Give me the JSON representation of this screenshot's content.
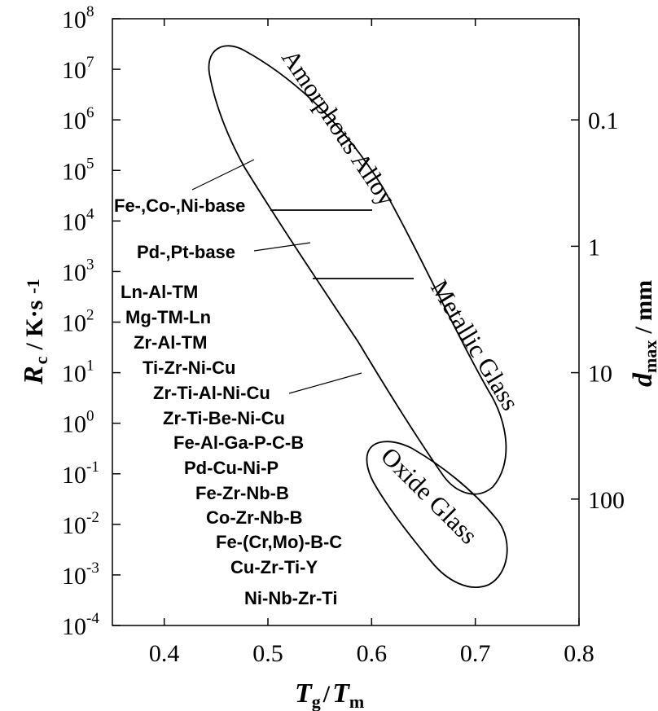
{
  "chart_data": {
    "type": "scatter",
    "x_axis": {
      "range": [
        0.35,
        0.8
      ],
      "ticks": [
        0.4,
        0.5,
        0.6,
        0.7,
        0.8
      ],
      "tick_labels": [
        "0.4",
        "0.5",
        "0.6",
        "0.7",
        "0.8"
      ],
      "label_main": "T",
      "label_sub_1": "g",
      "label_sep": "/",
      "label_main_2": "T",
      "label_sub_2": "m"
    },
    "y_axis": {
      "scale": "log",
      "range_exponent": [
        -4,
        8
      ],
      "ticks": [
        {
          "base": "10",
          "exp": "8"
        },
        {
          "base": "10",
          "exp": "7"
        },
        {
          "base": "10",
          "exp": "6"
        },
        {
          "base": "10",
          "exp": "5"
        },
        {
          "base": "10",
          "exp": "4"
        },
        {
          "base": "10",
          "exp": "3"
        },
        {
          "base": "10",
          "exp": "2"
        },
        {
          "base": "10",
          "exp": "1"
        },
        {
          "base": "10",
          "exp": "0"
        },
        {
          "base": "10",
          "exp": "-1"
        },
        {
          "base": "10",
          "exp": "-2"
        },
        {
          "base": "10",
          "exp": "-3"
        },
        {
          "base": "10",
          "exp": "-4"
        }
      ],
      "label_main": "R",
      "label_sub": "c",
      "label_unit": "/ K·s",
      "label_unit_exp": "-1"
    },
    "right_axis": {
      "label_main": "d",
      "label_sub": "max",
      "label_unit": "/ mm",
      "ticks": [
        {
          "label": "0.1",
          "y_exp": 6
        },
        {
          "label": "1",
          "y_exp": 3.5
        },
        {
          "label": "10",
          "y_exp": 1
        },
        {
          "label": "100",
          "y_exp": -1.5
        }
      ]
    },
    "regions": [
      {
        "name": "Amorphous Alloy",
        "x_range": [
          0.48,
          0.74
        ],
        "y_exp_range": [
          -1.5,
          7.5
        ]
      },
      {
        "name": "Metallic Glass",
        "x_range": [
          0.52,
          0.65
        ],
        "y_exp_range": [
          -1.5,
          4.2
        ]
      },
      {
        "name": "Oxide Glass",
        "x_range": [
          0.6,
          0.78
        ],
        "y_exp_range": [
          -3.2,
          -0.3
        ]
      }
    ],
    "boundary_lines": [
      {
        "x": [
          0.525,
          0.605
        ],
        "y_exp": [
          4.2,
          4.2
        ]
      },
      {
        "x": [
          0.565,
          0.645
        ],
        "y_exp": [
          3.2,
          3.2
        ]
      }
    ],
    "alloy_labels": [
      "Fe-,Co-,Ni-base",
      "Pd-,Pt-base",
      "Ln-Al-TM",
      "Mg-TM-Ln",
      "Zr-Al-TM",
      "Ti-Zr-Ni-Cu",
      "Zr-Ti-Al-Ni-Cu",
      "Zr-Ti-Be-Ni-Cu",
      "Fe-Al-Ga-P-C-B",
      "Pd-Cu-Ni-P",
      "Fe-Zr-Nb-B",
      "Co-Zr-Nb-B",
      "Fe-(Cr,Mo)-B-C",
      "Cu-Zr-Ti-Y",
      "Ni-Nb-Zr-Ti"
    ],
    "legend": "none",
    "grid": false
  }
}
